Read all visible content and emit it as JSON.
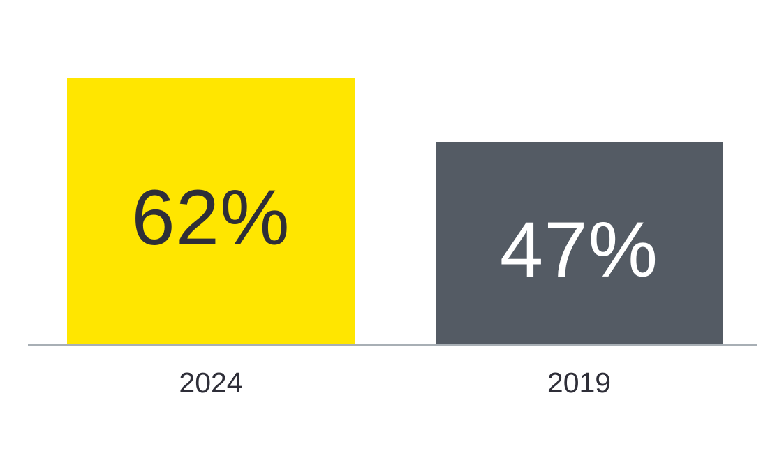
{
  "chart_data": {
    "type": "bar",
    "title": "",
    "xlabel": "",
    "ylabel": "",
    "categories": [
      "2024",
      "2019"
    ],
    "values": [
      62,
      47
    ],
    "value_labels": [
      "62%",
      "47%"
    ],
    "bar_colors": [
      "#FFE600",
      "#545B64"
    ],
    "value_label_colors": [
      "#2E2E38",
      "#FFFFFF"
    ],
    "category_label_color": "#2E2E38",
    "axis_line_color": "#A8AFB5",
    "background_color": "#FFFFFF",
    "ylim": [
      0,
      62
    ],
    "grid": false,
    "legend": false,
    "value_labels_position": "inside-center",
    "orientation": "vertical"
  }
}
